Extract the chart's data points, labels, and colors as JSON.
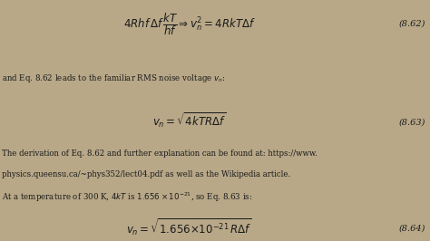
{
  "bg_color": "#b8a888",
  "text_color": "#1a1a1a",
  "eq1_num": "(8.62)",
  "text1": "and Eq. 8.62 leads to the familiar RMS noise voltage $v_n$:",
  "eq2_num": "(8.63)",
  "text2_line1": "The derivation of Eq. 8.62 and further explanation can be found at: https://www.",
  "text2_line2": "physics.queensu.ca/~phys352/lect04.pdf as well as the Wikipedia article.",
  "text2_line3": "At a temperature of 300 K, $4kT$ is $1.656 \\times 10^{-21}$, so Eq. 8.63 is:",
  "eq3_num": "(8.64)",
  "fs_eq": 8.5,
  "fs_text": 6.2,
  "fs_num": 7.0
}
